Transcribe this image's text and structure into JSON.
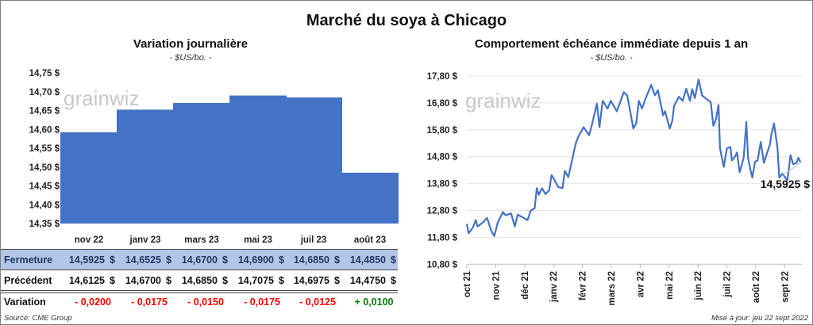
{
  "title": "Marché du soya à Chicago",
  "watermark": "grainwiz",
  "source": "Source: CME Group",
  "updated": "Mise à jour: jeu 22 sept 2022",
  "colors": {
    "bar": "#4472c4",
    "line": "#4472c4",
    "fermeture_bg": "#b4c6e7",
    "fermeture_text": "#1f3864",
    "negative": "#ff0000",
    "positive": "#008000"
  },
  "table": {
    "rows": [
      {
        "label": "Fermeture",
        "values": [
          "14,5925",
          "14,6525",
          "14,6700",
          "14,6900",
          "14,6850",
          "14,4850"
        ],
        "unit": "$"
      },
      {
        "label": "Précédent",
        "values": [
          "14,6125",
          "14,6700",
          "14,6850",
          "14,7075",
          "14,6975",
          "14,4750"
        ],
        "unit": "$"
      },
      {
        "label": "Variation",
        "values": [
          "- 0,0200",
          "- 0,0175",
          "- 0,0150",
          "- 0,0175",
          "- 0,0125",
          "+ 0,0100"
        ]
      }
    ]
  },
  "chart_data": [
    {
      "type": "bar",
      "title": "Variation journalière",
      "subtitle": "- $US/bo. -",
      "categories": [
        "nov 22",
        "janv 23",
        "mars 23",
        "mai 23",
        "juil 23",
        "août 23"
      ],
      "values": [
        14.5925,
        14.6525,
        14.67,
        14.69,
        14.685,
        14.485
      ],
      "ylim": [
        14.35,
        14.75
      ],
      "yticks": [
        "14,75 $",
        "14,70 $",
        "14,65 $",
        "14,60 $",
        "14,55 $",
        "14,50 $",
        "14,45 $",
        "14,40 $",
        "14,35 $"
      ],
      "grid": false
    },
    {
      "type": "line",
      "title": "Comportement  échéance immédiate depuis 1 an",
      "subtitle": "- $US/bo. -",
      "xticks": [
        "oct 21",
        "nov 21",
        "déc 21",
        "janv 22",
        "févr 22",
        "mars 22",
        "avr 22",
        "mai 22",
        "juin 22",
        "juil 22",
        "août 22",
        "sept 22"
      ],
      "yticks": [
        "17,80 $",
        "16,80 $",
        "15,80 $",
        "14,80 $",
        "13,80 $",
        "12,80 $",
        "11,80 $",
        "10,80 $"
      ],
      "ylim": [
        10.8,
        17.8
      ],
      "grid": true,
      "last_label": "14,5925 $",
      "x_unit": "months since oct 21",
      "points": [
        [
          0,
          12.3
        ],
        [
          0.06,
          11.95
        ],
        [
          0.2,
          12.15
        ],
        [
          0.31,
          12.44
        ],
        [
          0.37,
          12.2
        ],
        [
          0.57,
          12.37
        ],
        [
          0.7,
          12.52
        ],
        [
          0.84,
          12.05
        ],
        [
          0.95,
          11.85
        ],
        [
          1.07,
          12.35
        ],
        [
          1.25,
          12.74
        ],
        [
          1.34,
          12.62
        ],
        [
          1.53,
          12.69
        ],
        [
          1.66,
          12.2
        ],
        [
          1.76,
          12.64
        ],
        [
          1.94,
          12.54
        ],
        [
          2.1,
          12.44
        ],
        [
          2.21,
          12.79
        ],
        [
          2.35,
          12.89
        ],
        [
          2.42,
          13.63
        ],
        [
          2.49,
          13.38
        ],
        [
          2.6,
          13.63
        ],
        [
          2.72,
          13.41
        ],
        [
          2.85,
          13.55
        ],
        [
          2.93,
          14.12
        ],
        [
          3.04,
          13.92
        ],
        [
          3.15,
          13.68
        ],
        [
          3.31,
          13.63
        ],
        [
          3.39,
          14.27
        ],
        [
          3.51,
          14.04
        ],
        [
          3.63,
          14.61
        ],
        [
          3.77,
          15.3
        ],
        [
          3.86,
          15.55
        ],
        [
          4.04,
          15.9
        ],
        [
          4.23,
          15.6
        ],
        [
          4.32,
          15.95
        ],
        [
          4.5,
          16.78
        ],
        [
          4.59,
          15.9
        ],
        [
          4.7,
          16.88
        ],
        [
          4.87,
          16.59
        ],
        [
          4.98,
          16.88
        ],
        [
          5.19,
          16.49
        ],
        [
          5.43,
          17.2
        ],
        [
          5.55,
          17.08
        ],
        [
          5.67,
          16.39
        ],
        [
          5.76,
          15.85
        ],
        [
          5.86,
          16.04
        ],
        [
          5.95,
          16.88
        ],
        [
          6.06,
          16.59
        ],
        [
          6.19,
          16.98
        ],
        [
          6.38,
          17.47
        ],
        [
          6.51,
          17.08
        ],
        [
          6.61,
          17.28
        ],
        [
          6.79,
          16.34
        ],
        [
          6.86,
          16.49
        ],
        [
          7.02,
          15.85
        ],
        [
          7.11,
          16.14
        ],
        [
          7.17,
          16.69
        ],
        [
          7.34,
          17.03
        ],
        [
          7.47,
          16.88
        ],
        [
          7.59,
          17.33
        ],
        [
          7.72,
          16.88
        ],
        [
          7.8,
          17.31
        ],
        [
          7.89,
          16.98
        ],
        [
          8.02,
          17.67
        ],
        [
          8.14,
          17.08
        ],
        [
          8.25,
          16.98
        ],
        [
          8.44,
          16.83
        ],
        [
          8.53,
          15.95
        ],
        [
          8.62,
          16.19
        ],
        [
          8.71,
          16.73
        ],
        [
          8.76,
          15.11
        ],
        [
          8.89,
          14.42
        ],
        [
          9.0,
          15.11
        ],
        [
          9.12,
          15.16
        ],
        [
          9.17,
          14.66
        ],
        [
          9.28,
          14.81
        ],
        [
          9.35,
          14.96
        ],
        [
          9.44,
          14.22
        ],
        [
          9.58,
          14.76
        ],
        [
          9.67,
          16.09
        ],
        [
          9.73,
          14.76
        ],
        [
          9.81,
          14.32
        ],
        [
          9.88,
          14.02
        ],
        [
          9.97,
          14.61
        ],
        [
          10.06,
          14.66
        ],
        [
          10.17,
          15.35
        ],
        [
          10.28,
          14.57
        ],
        [
          10.38,
          14.91
        ],
        [
          10.49,
          15.26
        ],
        [
          10.54,
          15.65
        ],
        [
          10.63,
          16.04
        ],
        [
          10.75,
          15.11
        ],
        [
          10.81,
          14.02
        ],
        [
          10.92,
          14.17
        ],
        [
          11.09,
          13.92
        ],
        [
          11.2,
          14.86
        ],
        [
          11.29,
          14.52
        ],
        [
          11.41,
          14.57
        ],
        [
          11.47,
          14.76
        ],
        [
          11.55,
          14.59
        ]
      ]
    }
  ]
}
